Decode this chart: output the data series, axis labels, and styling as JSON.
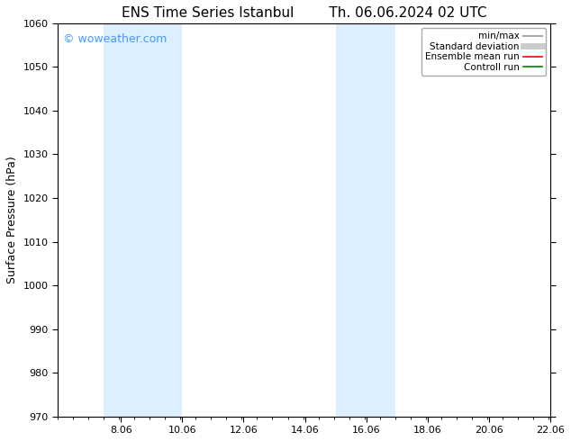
{
  "title_left": "ENS Time Series Istanbul",
  "title_right": "Th. 06.06.2024 02 UTC",
  "ylabel": "Surface Pressure (hPa)",
  "ylim": [
    970,
    1060
  ],
  "yticks": [
    970,
    980,
    990,
    1000,
    1010,
    1020,
    1030,
    1040,
    1050,
    1060
  ],
  "xlim": [
    6.0,
    22.06
  ],
  "xticks": [
    8.06,
    10.06,
    12.06,
    14.06,
    16.06,
    18.06,
    20.06,
    22.06
  ],
  "background_color": "#ffffff",
  "plot_bg_color": "#ffffff",
  "shaded_bands": [
    {
      "xmin": 7.5,
      "xmax": 10.06,
      "color": "#ddeeff"
    },
    {
      "xmin": 15.06,
      "xmax": 17.0,
      "color": "#ddeeff"
    }
  ],
  "watermark_text": "© woweather.com",
  "watermark_color": "#4499ff",
  "legend_items": [
    {
      "label": "min/max",
      "color": "#aaaaaa",
      "lw": 1.5,
      "style": "solid"
    },
    {
      "label": "Standard deviation",
      "color": "#cccccc",
      "lw": 5,
      "style": "solid"
    },
    {
      "label": "Ensemble mean run",
      "color": "#ff0000",
      "lw": 1.2,
      "style": "solid"
    },
    {
      "label": "Controll run",
      "color": "#008000",
      "lw": 1.2,
      "style": "solid"
    }
  ],
  "title_fontsize": 11,
  "axis_label_fontsize": 9,
  "tick_fontsize": 8,
  "legend_fontsize": 7.5,
  "watermark_fontsize": 9
}
